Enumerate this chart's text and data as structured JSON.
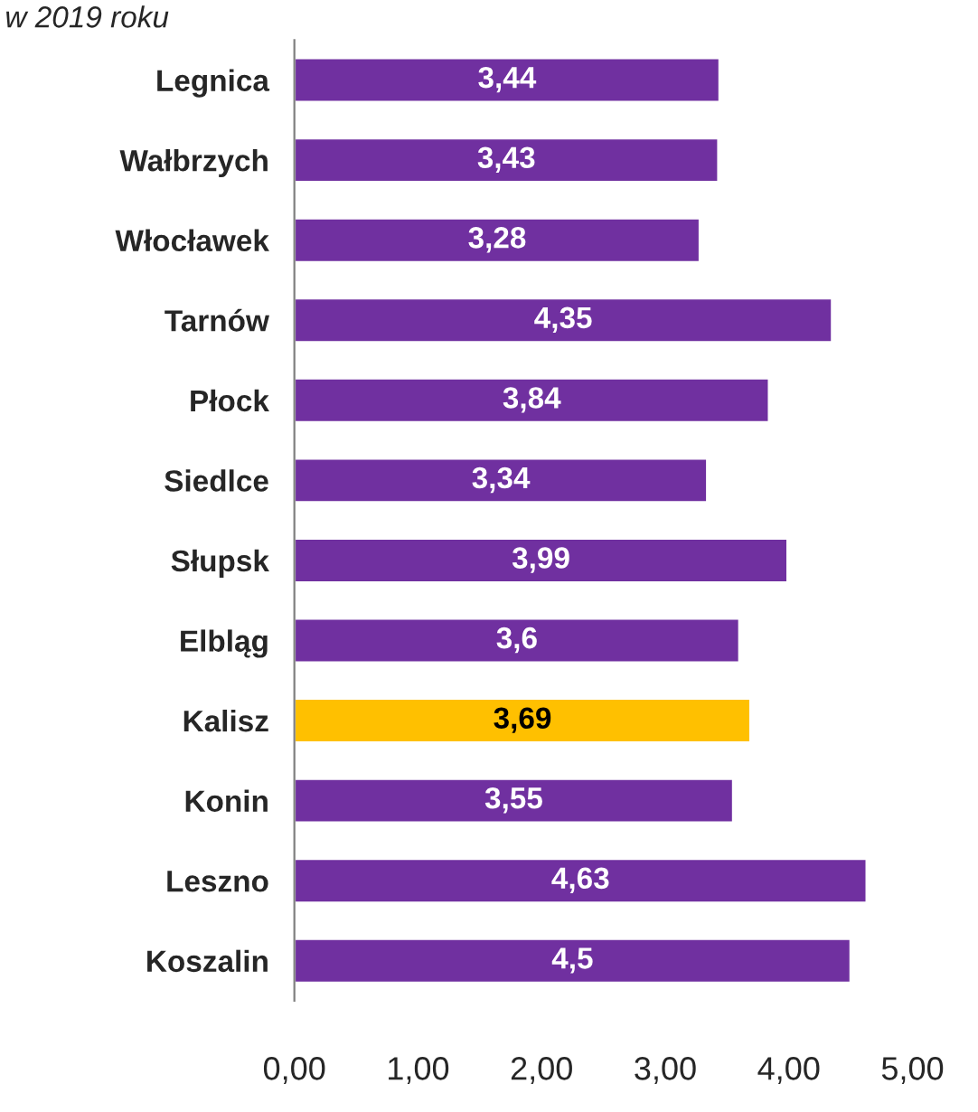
{
  "chart_data": {
    "type": "bar",
    "orientation": "horizontal",
    "title": "w 2019 roku",
    "categories": [
      "Legnica",
      "Wałbrzych",
      "Włocławek",
      "Tarnów",
      "Płock",
      "Siedlce",
      "Słupsk",
      "Elbląg",
      "Kalisz",
      "Konin",
      "Leszno",
      "Koszalin"
    ],
    "values": [
      3.44,
      3.43,
      3.28,
      4.35,
      3.84,
      3.34,
      3.99,
      3.6,
      3.69,
      3.55,
      4.63,
      4.5
    ],
    "value_labels": [
      "3,44",
      "3,43",
      "3,28",
      "4,35",
      "3,84",
      "3,34",
      "3,99",
      "3,6",
      "3,69",
      "3,55",
      "4,63",
      "4,5"
    ],
    "colors": [
      "#7030a0",
      "#7030a0",
      "#7030a0",
      "#7030a0",
      "#7030a0",
      "#7030a0",
      "#7030a0",
      "#7030a0",
      "#ffc000",
      "#7030a0",
      "#7030a0",
      "#7030a0"
    ],
    "xlim": [
      0,
      5
    ],
    "xticks": [
      {
        "value": 0,
        "label": "0,00"
      },
      {
        "value": 1,
        "label": "1,00"
      },
      {
        "value": 2,
        "label": "2,00"
      },
      {
        "value": 3,
        "label": "3,00"
      },
      {
        "value": 4,
        "label": "4,00"
      },
      {
        "value": 5,
        "label": "5,00"
      }
    ],
    "grid": false,
    "legend": false
  }
}
